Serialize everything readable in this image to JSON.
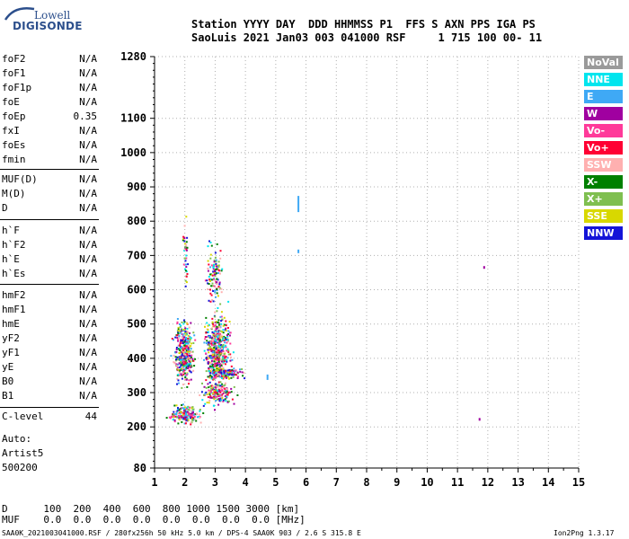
{
  "logo": {
    "line1": "Lowell",
    "line2": "DIGISONDE"
  },
  "header": {
    "labels": "Station YYYY DAY  DDD HHMMSS P1  FFS S AXN PPS IGA PS",
    "values": "SaoLuis 2021 Jan03 003 041000 RSF     1 715 100 00- 11"
  },
  "parameters": {
    "group1": [
      {
        "name": "foF2",
        "value": "N/A"
      },
      {
        "name": "foF1",
        "value": "N/A"
      },
      {
        "name": "foF1p",
        "value": "N/A"
      },
      {
        "name": "foE",
        "value": "N/A"
      },
      {
        "name": "foEp",
        "value": "0.35"
      },
      {
        "name": "fxI",
        "value": "N/A"
      },
      {
        "name": "foEs",
        "value": "N/A"
      },
      {
        "name": "fmin",
        "value": "N/A"
      }
    ],
    "group2": [
      {
        "name": "MUF(D)",
        "value": "N/A"
      },
      {
        "name": "M(D)",
        "value": "N/A"
      },
      {
        "name": "D",
        "value": "N/A"
      }
    ],
    "group3": [
      {
        "name": "h`F",
        "value": "N/A"
      },
      {
        "name": "h`F2",
        "value": "N/A"
      },
      {
        "name": "h`E",
        "value": "N/A"
      },
      {
        "name": "h`Es",
        "value": "N/A"
      }
    ],
    "group4": [
      {
        "name": "hmF2",
        "value": "N/A"
      },
      {
        "name": "hmF1",
        "value": "N/A"
      },
      {
        "name": "hmE",
        "value": "N/A"
      },
      {
        "name": "yF2",
        "value": "N/A"
      },
      {
        "name": "yF1",
        "value": "N/A"
      },
      {
        "name": "yE",
        "value": "N/A"
      },
      {
        "name": "B0",
        "value": "N/A"
      },
      {
        "name": "B1",
        "value": "N/A"
      }
    ],
    "group5": [
      {
        "name": "C-level",
        "value": "44"
      }
    ],
    "auto": [
      "Auto:",
      "Artist5",
      "500200"
    ]
  },
  "legend": [
    {
      "label": "NoVal",
      "color": "#9a9a9a"
    },
    {
      "label": "NNE",
      "color": "#00e5ee"
    },
    {
      "label": "E",
      "color": "#3fa9f5"
    },
    {
      "label": "W",
      "color": "#a000a0"
    },
    {
      "label": "Vo-",
      "color": "#ff3a9a"
    },
    {
      "label": "Vo+",
      "color": "#ff0033"
    },
    {
      "label": "SSW",
      "color": "#ffb0b0"
    },
    {
      "label": "X-",
      "color": "#008000"
    },
    {
      "label": "X+",
      "color": "#7fbf50"
    },
    {
      "label": "SSE",
      "color": "#d8d800"
    },
    {
      "label": "NNW",
      "color": "#1414d8"
    }
  ],
  "footer": {
    "line1": "D      100  200  400  600  800 1000 1500 3000 [km]",
    "line2": "MUF    0.0  0.0  0.0  0.0  0.0  0.0  0.0  0.0 [MHz]",
    "line3": "SAA0K_2021003041000.RSF / 280fx256h 50 kHz 5.0 km / DPS-4 SAA0K 903 / 2.6 S 315.8 E",
    "version": "Ion2Png 1.3.17"
  },
  "chart_data": {
    "type": "scatter",
    "xlabel": "",
    "ylabel": "",
    "xlim": [
      1,
      15
    ],
    "ylim": [
      80,
      1280
    ],
    "x_ticks": [
      1,
      2,
      3,
      4,
      5,
      6,
      7,
      8,
      9,
      10,
      11,
      12,
      13,
      14,
      15
    ],
    "y_ticks": [
      80,
      200,
      300,
      400,
      500,
      600,
      700,
      800,
      900,
      1000,
      1100,
      1280
    ],
    "seed": 7,
    "clusters": [
      {
        "cx": 1.95,
        "cy": 420,
        "sx": 0.28,
        "sy": 80,
        "n": 420
      },
      {
        "cx": 3.05,
        "cy": 430,
        "sx": 0.38,
        "sy": 95,
        "n": 520
      },
      {
        "cx": 2.0,
        "cy": 240,
        "sx": 0.45,
        "sy": 25,
        "n": 180
      },
      {
        "cx": 3.0,
        "cy": 300,
        "sx": 0.5,
        "sy": 30,
        "n": 160
      },
      {
        "cx": 2.95,
        "cy": 650,
        "sx": 0.22,
        "sy": 80,
        "n": 110
      },
      {
        "cx": 2.0,
        "cy": 700,
        "sx": 0.08,
        "sy": 100,
        "n": 40
      },
      {
        "cx": 3.3,
        "cy": 360,
        "sx": 0.6,
        "sy": 15,
        "n": 140
      }
    ],
    "isolated_points": [
      {
        "x": 5.72,
        "y": 850,
        "color": "#3fa9f5",
        "h": 18
      },
      {
        "x": 5.72,
        "y": 712,
        "color": "#3fa9f5",
        "h": 4
      },
      {
        "x": 11.85,
        "y": 665,
        "color": "#a000a0",
        "h": 3
      },
      {
        "x": 11.7,
        "y": 222,
        "color": "#a000a0",
        "h": 3
      },
      {
        "x": 4.7,
        "y": 345,
        "color": "#3fa9f5",
        "h": 6
      }
    ]
  }
}
